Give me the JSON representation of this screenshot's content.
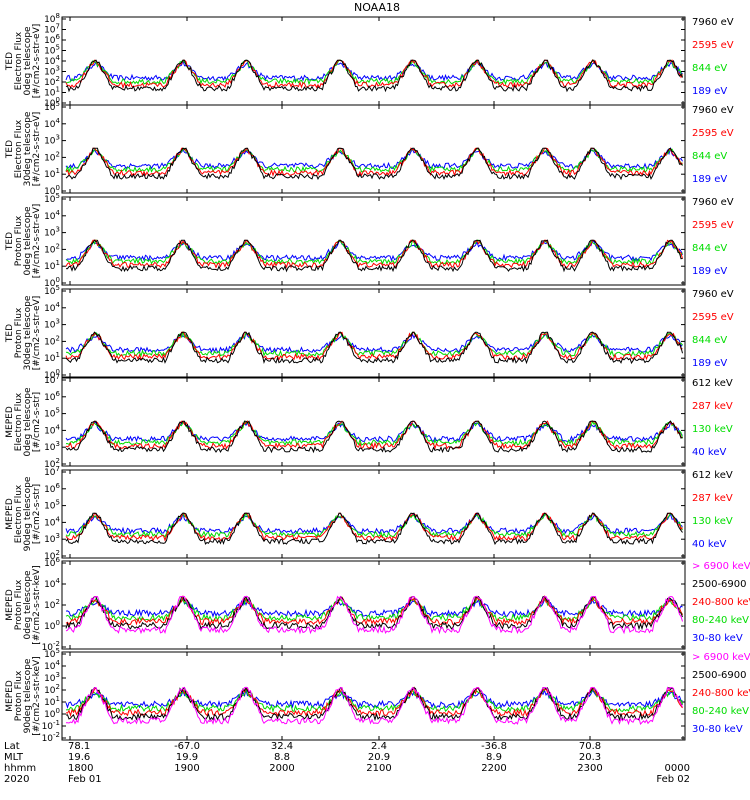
{
  "chart_data": {
    "type": "line",
    "title": "NOAA18",
    "x_times": [
      "1800",
      "1900",
      "2000",
      "2100",
      "2200",
      "2300"
    ],
    "panels": [
      {
        "ylabel": [
          "TED",
          "Electron Flux",
          "0deg telescope",
          "[#/cm2-s-str-eV]"
        ],
        "yticks": [
          "10^8",
          "10^7",
          "10^6",
          "10^5",
          "10^4",
          "10^3",
          "10^2",
          "10^1",
          "10^0"
        ],
        "legend": [
          {
            "label": "7960 eV",
            "color": "#000000"
          },
          {
            "label": "2595 eV",
            "color": "#ff0000"
          },
          {
            "label": "844 eV",
            "color": "#00dd00"
          },
          {
            "label": "189 eV",
            "color": "#0000ff"
          }
        ]
      },
      {
        "ylabel": [
          "TED",
          "Electron Flux",
          "30deg telescope",
          "[#/cm2-s-str-eV]"
        ],
        "yticks": [
          "10^5",
          "10^4",
          "10^3",
          "10^2",
          "10^1",
          "10^0"
        ],
        "legend": [
          {
            "label": "7960 eV",
            "color": "#000000"
          },
          {
            "label": "2595 eV",
            "color": "#ff0000"
          },
          {
            "label": "844 eV",
            "color": "#00dd00"
          },
          {
            "label": "189 eV",
            "color": "#0000ff"
          }
        ]
      },
      {
        "ylabel": [
          "TED",
          "Proton Flux",
          "0deg telescope",
          "[#/cm2-s-str-eV]"
        ],
        "yticks": [
          "10^5",
          "10^4",
          "10^3",
          "10^2",
          "10^1",
          "10^0"
        ],
        "legend": [
          {
            "label": "7960 eV",
            "color": "#000000"
          },
          {
            "label": "2595 eV",
            "color": "#ff0000"
          },
          {
            "label": "844 eV",
            "color": "#00dd00"
          },
          {
            "label": "189 eV",
            "color": "#0000ff"
          }
        ]
      },
      {
        "ylabel": [
          "TED",
          "Proton Flux",
          "30deg telescope",
          "[#/cm2-s-str-eV]"
        ],
        "yticks": [
          "10^5",
          "10^4",
          "10^3",
          "10^2",
          "10^1",
          "10^0"
        ],
        "legend": [
          {
            "label": "7960 eV",
            "color": "#000000"
          },
          {
            "label": "2595 eV",
            "color": "#ff0000"
          },
          {
            "label": "844 eV",
            "color": "#00dd00"
          },
          {
            "label": "189 eV",
            "color": "#0000ff"
          }
        ]
      },
      {
        "ylabel": [
          "MEPED",
          "Electron Flux",
          "0deg telescope",
          "[#/cm2-s-str]"
        ],
        "yticks": [
          "10^7",
          "10^6",
          "10^5",
          "10^4",
          "10^3",
          "10^2"
        ],
        "legend": [
          {
            "label": "612 keV",
            "color": "#000000"
          },
          {
            "label": "287 keV",
            "color": "#ff0000"
          },
          {
            "label": "130 keV",
            "color": "#00dd00"
          },
          {
            "label": "40 keV",
            "color": "#0000ff"
          }
        ]
      },
      {
        "ylabel": [
          "MEPED",
          "Electron Flux",
          "90deg telescope",
          "[#/cm2-s-str]"
        ],
        "yticks": [
          "10^7",
          "10^6",
          "10^5",
          "10^4",
          "10^3",
          "10^2"
        ],
        "legend": [
          {
            "label": "612 keV",
            "color": "#000000"
          },
          {
            "label": "287 keV",
            "color": "#ff0000"
          },
          {
            "label": "130 keV",
            "color": "#00dd00"
          },
          {
            "label": "40 keV",
            "color": "#0000ff"
          }
        ]
      },
      {
        "ylabel": [
          "MEPED",
          "Proton Flux",
          "0deg telescope",
          "[#/cm2-s-str-keV]"
        ],
        "yticks": [
          "10^6",
          "10^4",
          "10^2",
          "10^0",
          "10^-2"
        ],
        "legend": [
          {
            "label": "> 6900 keV",
            "color": "#ff00ff"
          },
          {
            "label": "2500-6900",
            "color": "#000000"
          },
          {
            "label": "240-800 keV",
            "color": "#ff0000"
          },
          {
            "label": "80-240 keV",
            "color": "#00dd00"
          },
          {
            "label": "30-80 keV",
            "color": "#0000ff"
          }
        ]
      },
      {
        "ylabel": [
          "MEPED",
          "Proton Flux",
          "90deg telescope",
          "[#/cm2-s-str-keV]"
        ],
        "yticks": [
          "10^5",
          "10^4",
          "10^3",
          "10^2",
          "10^1",
          "10^0",
          "10^-1",
          "10^-2"
        ],
        "legend": [
          {
            "label": "> 6900 keV",
            "color": "#ff00ff"
          },
          {
            "label": "2500-6900",
            "color": "#000000"
          },
          {
            "label": "240-800 keV",
            "color": "#ff0000"
          },
          {
            "label": "80-240 keV",
            "color": "#00dd00"
          },
          {
            "label": "30-80 keV",
            "color": "#0000ff"
          }
        ]
      }
    ],
    "bottom_rows": [
      {
        "label": "Lat",
        "values": [
          "78.1",
          "-67.0",
          "32.4",
          "2.4",
          "-36.8",
          "70.8",
          ""
        ]
      },
      {
        "label": "MLT",
        "values": [
          "19.6",
          "19.9",
          "8.8",
          "20.9",
          "8.9",
          "20.3",
          ""
        ]
      },
      {
        "label": "hhmm",
        "values": [
          "1800",
          "1900",
          "2000",
          "2100",
          "2200",
          "2300",
          "0000"
        ]
      },
      {
        "label": "2020",
        "values": [
          "Feb 01",
          "",
          "",
          "",
          "",
          "",
          "Feb 02"
        ]
      }
    ]
  }
}
